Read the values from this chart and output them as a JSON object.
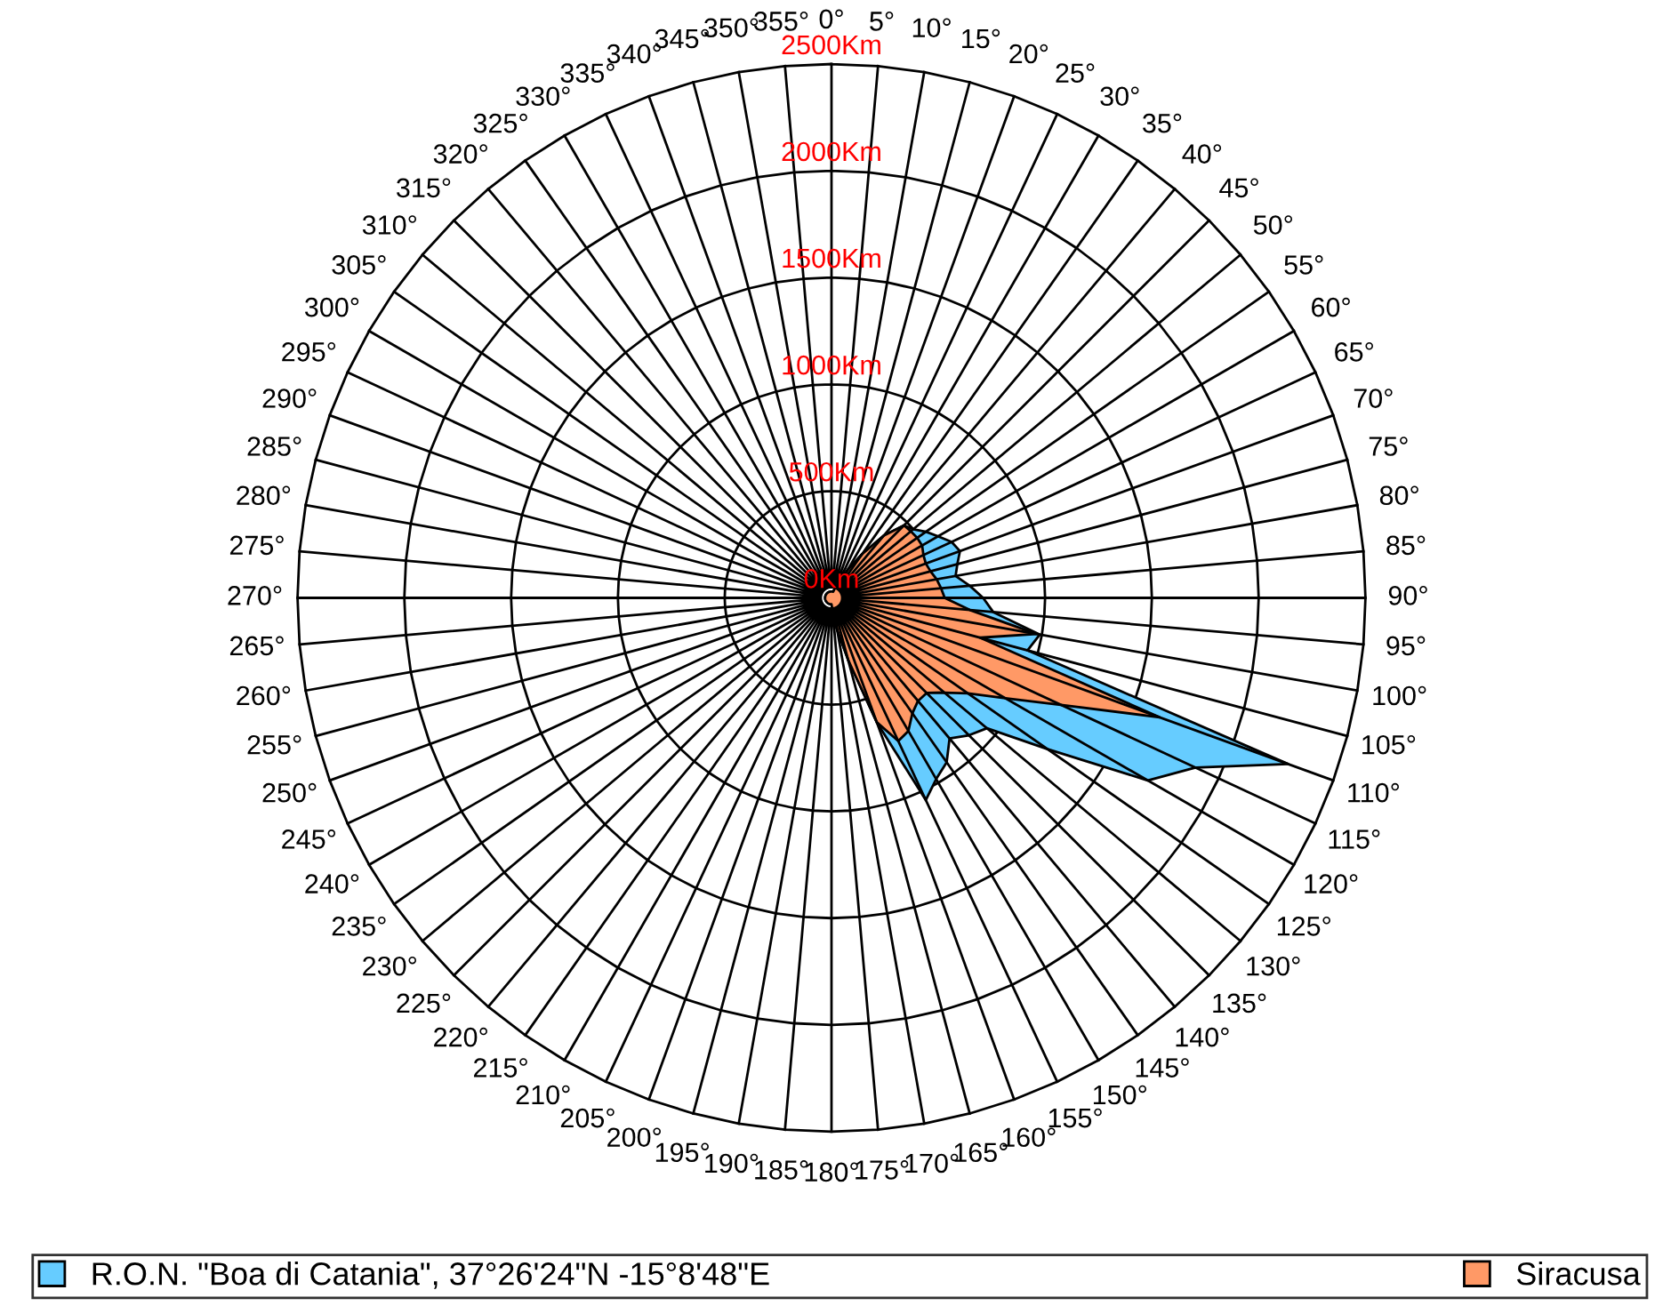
{
  "chart_data": {
    "type": "radar",
    "categories": [
      "0°",
      "5°",
      "10°",
      "15°",
      "20°",
      "25°",
      "30°",
      "35°",
      "40°",
      "45°",
      "50°",
      "55°",
      "60°",
      "65°",
      "70°",
      "75°",
      "80°",
      "85°",
      "90°",
      "95°",
      "100°",
      "105°",
      "110°",
      "115°",
      "120°",
      "125°",
      "130°",
      "135°",
      "140°",
      "145°",
      "150°",
      "155°",
      "160°",
      "165°",
      "170°",
      "175°",
      "180°",
      "185°",
      "190°",
      "195°",
      "200°",
      "205°",
      "210°",
      "215°",
      "220°",
      "225°",
      "230°",
      "235°",
      "240°",
      "245°",
      "250°",
      "255°",
      "260°",
      "265°",
      "270°",
      "275°",
      "280°",
      "285°",
      "290°",
      "295°",
      "300°",
      "305°",
      "310°",
      "315°",
      "320°",
      "325°",
      "330°",
      "335°",
      "340°",
      "345°",
      "350°",
      "355°"
    ],
    "series": [
      {
        "name": "R.O.N. \"Boa di Catania\", 37°26'24\"N -15°8'48\"E",
        "color": "#66ccff",
        "values": [
          30,
          30,
          30,
          30,
          50,
          80,
          150,
          250,
          380,
          480,
          500,
          540,
          576,
          620,
          640,
          610,
          590,
          650,
          710,
          760,
          990,
          950,
          2275,
          1880,
          1710,
          1235,
          950,
          910,
          860,
          940,
          980,
          1045,
          620,
          300,
          150,
          60,
          30,
          30,
          30,
          30,
          30,
          30,
          30,
          30,
          30,
          30,
          30,
          30,
          30,
          30,
          30,
          30,
          30,
          30,
          30,
          30,
          30,
          30,
          30,
          30,
          30,
          30,
          30,
          30,
          30,
          30,
          30,
          30,
          30,
          30,
          30,
          30
        ]
      },
      {
        "name": "Siracusa",
        "color": "#ff9966",
        "values": [
          30,
          30,
          30,
          30,
          50,
          80,
          150,
          250,
          380,
          480,
          485,
          490,
          490,
          475,
          470,
          480,
          500,
          515,
          530,
          650,
          975,
          720,
          1635,
          1185,
          940,
          780,
          690,
          630,
          630,
          660,
          720,
          740,
          620,
          300,
          150,
          60,
          30,
          30,
          30,
          30,
          30,
          30,
          30,
          30,
          30,
          30,
          30,
          30,
          30,
          30,
          30,
          30,
          30,
          30,
          30,
          30,
          30,
          30,
          30,
          30,
          30,
          30,
          30,
          30,
          30,
          30,
          30,
          30,
          30,
          30,
          30,
          30
        ]
      }
    ],
    "ylim": [
      0,
      2500
    ],
    "yticks": [
      {
        "value": 0,
        "label": "0Km"
      },
      {
        "value": 500,
        "label": "500Km"
      },
      {
        "value": 1000,
        "label": "1000Km"
      },
      {
        "value": 1500,
        "label": "1500Km"
      },
      {
        "value": 2000,
        "label": "2000Km"
      },
      {
        "value": 2500,
        "label": "2500Km"
      }
    ],
    "grid": true,
    "legend": "bottom"
  }
}
